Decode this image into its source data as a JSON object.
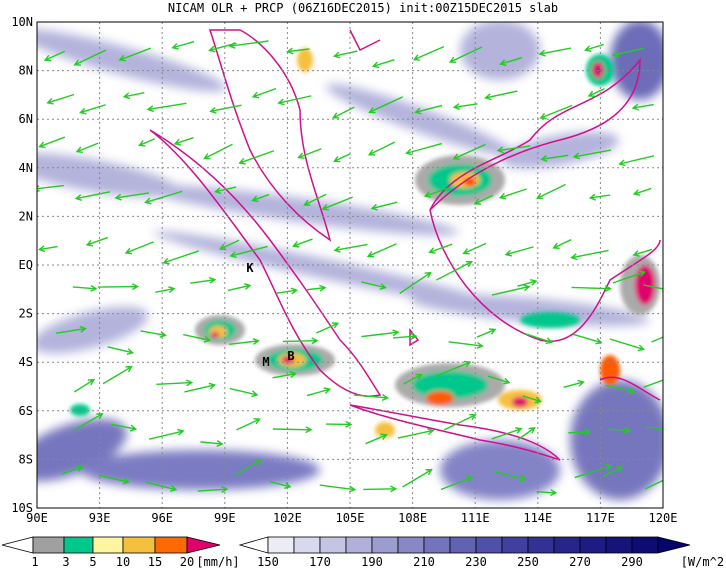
{
  "title": "NICAM OLR + PRCP (06Z16DEC2015) init:00Z15DEC2015 slab",
  "lon_labels": [
    "90E",
    "93E",
    "96E",
    "99E",
    "102E",
    "105E",
    "108E",
    "111E",
    "114E",
    "117E",
    "120E"
  ],
  "lat_labels": [
    "10N",
    "8N",
    "6N",
    "4N",
    "2N",
    "EQ",
    "2S",
    "4S",
    "6S",
    "8S",
    "10S"
  ],
  "markers": [
    "K",
    "M",
    "B"
  ],
  "precip_colorbar": {
    "labels": [
      1,
      3,
      5,
      10,
      15,
      20
    ],
    "unit": "[mm/h]"
  },
  "olr_colorbar": {
    "labels": [
      150,
      170,
      190,
      210,
      230,
      250,
      270,
      290
    ],
    "unit": "[W/m^2]"
  }
}
